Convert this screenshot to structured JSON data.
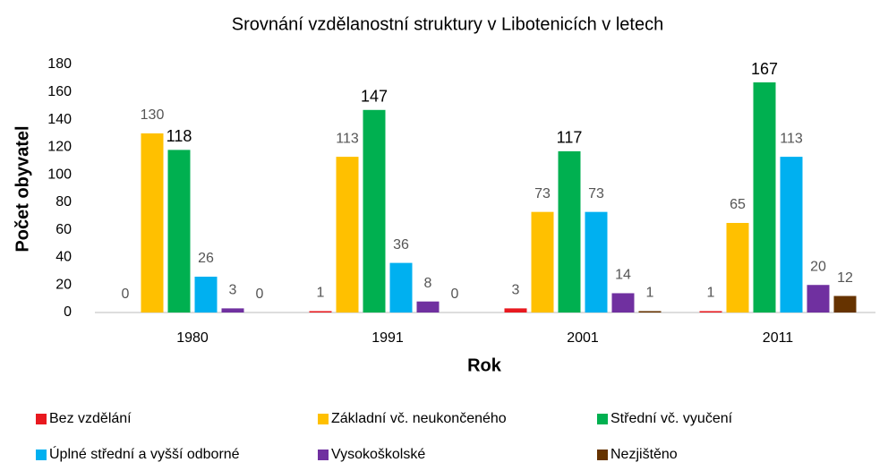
{
  "chart_data": {
    "type": "bar",
    "title": "Srovnání vzdělanostní struktury v Libotenicích v letech",
    "x_label": "Rok",
    "y_label": "Počet obyvatel",
    "categories": [
      "1980",
      "1991",
      "2001",
      "2011"
    ],
    "series": [
      {
        "name": "Bez vzdělání",
        "color": "#e8191f",
        "values": [
          0,
          1,
          3,
          1
        ]
      },
      {
        "name": "Základní vč. neukončeného",
        "color": "#ffc000",
        "values": [
          130,
          113,
          73,
          65
        ]
      },
      {
        "name": "Střední vč. vyučení",
        "color": "#00b050",
        "values": [
          118,
          147,
          117,
          167
        ]
      },
      {
        "name": "Úplné střední a vyšší odborné",
        "color": "#00b0f0",
        "values": [
          26,
          36,
          73,
          113
        ]
      },
      {
        "name": "Vysokoškolské",
        "color": "#7030a0",
        "values": [
          3,
          8,
          14,
          20
        ]
      },
      {
        "name": "Nezjištěno",
        "color": "#663300",
        "values": [
          0,
          0,
          1,
          12
        ]
      }
    ],
    "ylim": [
      0,
      180
    ],
    "yticks": [
      0,
      20,
      40,
      60,
      80,
      100,
      120,
      140,
      160,
      180
    ],
    "grid": false,
    "legend": "bottom"
  }
}
